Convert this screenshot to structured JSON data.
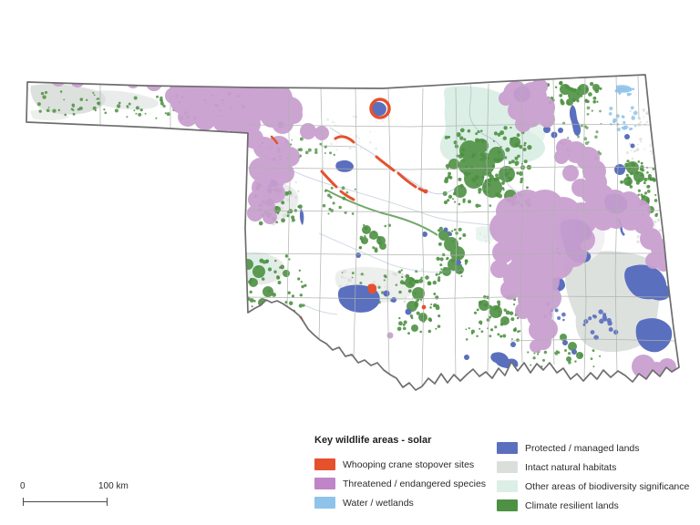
{
  "colors": {
    "whooping_crane": "#e5512d",
    "threatened": "#bf85c6",
    "threatened_map": "#c99fd0",
    "water": "#8fc3ea",
    "protected": "#5a6fbe",
    "intact": "#dbdfdc",
    "biodiversity": "#dcefe6",
    "climate": "#4e9143",
    "county_line": "#adb3ad",
    "state_line": "#6e6e6e",
    "river": "#97a8c2"
  },
  "legend": {
    "title": "Key wildlife areas - solar",
    "left": [
      {
        "label": "Whooping crane stopover sites",
        "color_key": "whooping_crane"
      },
      {
        "label": "Threatened / endangered species",
        "color_key": "threatened"
      },
      {
        "label": "Water / wetlands",
        "color_key": "water"
      }
    ],
    "right": [
      {
        "label": "Protected / managed lands",
        "color_key": "protected"
      },
      {
        "label": "Intact natural habitats",
        "color_key": "intact"
      },
      {
        "label": "Other areas of biodiversity significance",
        "color_key": "biodiversity"
      },
      {
        "label": "Climate resilient lands",
        "color_key": "climate"
      }
    ]
  },
  "scale_bar": {
    "start": "0",
    "end": "100 km"
  }
}
